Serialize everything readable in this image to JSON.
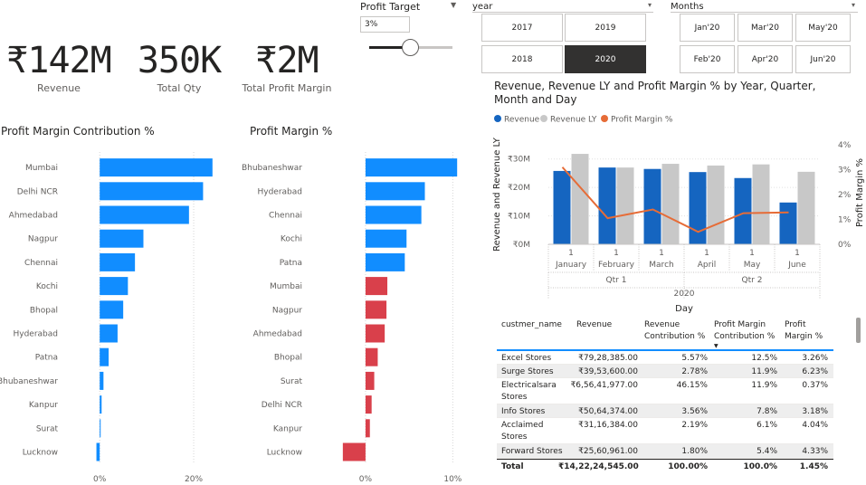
{
  "kpis": {
    "revenue": {
      "value": "₹142M",
      "label": "Revenue"
    },
    "qty": {
      "value": "350K",
      "label": "Total Qty"
    },
    "margin": {
      "value": "₹2M",
      "label": "Total Profit Margin"
    }
  },
  "profit_target": {
    "title": "Profit Target",
    "value": "3%",
    "level": 0.5
  },
  "year_slicer": {
    "title": "year",
    "options": [
      "2017",
      "2019",
      "2018",
      "2020"
    ],
    "selected": "2020"
  },
  "month_slicer": {
    "title": "Months",
    "options": [
      "Jan'20",
      "Mar'20",
      "May'20",
      "Feb'20",
      "Apr'20",
      "Jun'20"
    ]
  },
  "colors": {
    "blue": "#118dff",
    "red": "#d9404b",
    "revenue": "#1565c0",
    "revenue_ly": "#c8c8c8",
    "margin_line": "#e66c37"
  },
  "chart_data": [
    {
      "type": "bar",
      "orientation": "horizontal",
      "title": "Profit Margin Contribution %",
      "categories": [
        "Mumbai",
        "Delhi NCR",
        "Ahmedabad",
        "Nagpur",
        "Chennai",
        "Kochi",
        "Bhopal",
        "Hyderabad",
        "Patna",
        "Bhubaneshwar",
        "Kanpur",
        "Surat",
        "Lucknow"
      ],
      "values": [
        24.0,
        22.0,
        19.0,
        9.3,
        7.5,
        6.0,
        5.0,
        3.8,
        1.9,
        0.8,
        0.4,
        0.2,
        -0.7
      ],
      "xlim": [
        -1,
        25
      ],
      "ticks": [
        {
          "v": 0,
          "label": "0%"
        },
        {
          "v": 20,
          "label": "20%"
        }
      ]
    },
    {
      "type": "bar",
      "orientation": "horizontal",
      "title": "Profit Margin %",
      "categories": [
        "Bhubaneshwar",
        "Hyderabad",
        "Chennai",
        "Kochi",
        "Patna",
        "Mumbai",
        "Nagpur",
        "Ahmedabad",
        "Bhopal",
        "Surat",
        "Delhi NCR",
        "Kanpur",
        "Lucknow"
      ],
      "values": [
        10.5,
        6.8,
        6.4,
        4.7,
        4.5,
        2.5,
        2.4,
        2.2,
        1.4,
        1.0,
        0.7,
        0.5,
        -2.6
      ],
      "xlim": [
        -3,
        11
      ],
      "ticks": [
        {
          "v": 0,
          "label": "0%"
        },
        {
          "v": 10,
          "label": "10%"
        }
      ]
    },
    {
      "type": "bar+line",
      "title": "Revenue, Revenue LY and Profit Margin % by Year, Quarter, Month and Day",
      "legend": [
        "Revenue",
        "Revenue LY",
        "Profit Margin %"
      ],
      "ylabel": "Revenue and Revenue LY",
      "y2label": "Profit Margin %",
      "xlabel": "Day",
      "ylim": [
        0,
        35
      ],
      "yticks": [
        {
          "v": 0,
          "label": "₹0M"
        },
        {
          "v": 10,
          "label": "₹10M"
        },
        {
          "v": 20,
          "label": "₹20M"
        },
        {
          "v": 30,
          "label": "₹30M"
        }
      ],
      "y2lim": [
        0,
        4
      ],
      "y2ticks": [
        {
          "v": 0,
          "label": "0%"
        },
        {
          "v": 1,
          "label": "1%"
        },
        {
          "v": 2,
          "label": "2%"
        },
        {
          "v": 3,
          "label": "3%"
        },
        {
          "v": 4,
          "label": "4%"
        }
      ],
      "months": [
        "January",
        "February",
        "March",
        "April",
        "May",
        "June"
      ],
      "days": [
        "1",
        "1",
        "1",
        "1",
        "1",
        "1"
      ],
      "quarters": [
        "Qtr 1",
        "Qtr 2"
      ],
      "year": "2020",
      "series": [
        {
          "name": "Revenue",
          "values": [
            25.8,
            27.0,
            26.5,
            25.4,
            23.3,
            14.7
          ]
        },
        {
          "name": "Revenue LY",
          "values": [
            31.8,
            27.0,
            28.3,
            27.7,
            28.1,
            25.5
          ]
        },
        {
          "name": "Profit Margin %",
          "values": [
            3.1,
            1.05,
            1.4,
            0.5,
            1.25,
            1.28
          ]
        }
      ]
    }
  ],
  "table": {
    "headers": [
      "custmer_name",
      "Revenue",
      "Revenue Contribution %",
      "Profit Margin Contribution %",
      "Profit Margin %"
    ],
    "rows": [
      {
        "name": "Excel Stores",
        "revenue": "₹79,28,385.00",
        "rev_contrib": "5.57%",
        "pm_contrib": "12.5%",
        "pm": "3.26%"
      },
      {
        "name": "Surge Stores",
        "revenue": "₹39,53,600.00",
        "rev_contrib": "2.78%",
        "pm_contrib": "11.9%",
        "pm": "6.23%"
      },
      {
        "name": "Electricalsara Stores",
        "revenue": "₹6,56,41,977.00",
        "rev_contrib": "46.15%",
        "pm_contrib": "11.9%",
        "pm": "0.37%"
      },
      {
        "name": "Info Stores",
        "revenue": "₹50,64,374.00",
        "rev_contrib": "3.56%",
        "pm_contrib": "7.8%",
        "pm": "3.18%"
      },
      {
        "name": "Acclaimed Stores",
        "revenue": "₹31,16,384.00",
        "rev_contrib": "2.19%",
        "pm_contrib": "6.1%",
        "pm": "4.04%"
      },
      {
        "name": "Forward Stores",
        "revenue": "₹25,60,961.00",
        "rev_contrib": "1.80%",
        "pm_contrib": "5.4%",
        "pm": "4.33%"
      }
    ],
    "total": {
      "name": "Total",
      "revenue": "₹14,22,24,545.00",
      "rev_contrib": "100.00%",
      "pm_contrib": "100.0%",
      "pm": "1.45%"
    }
  }
}
